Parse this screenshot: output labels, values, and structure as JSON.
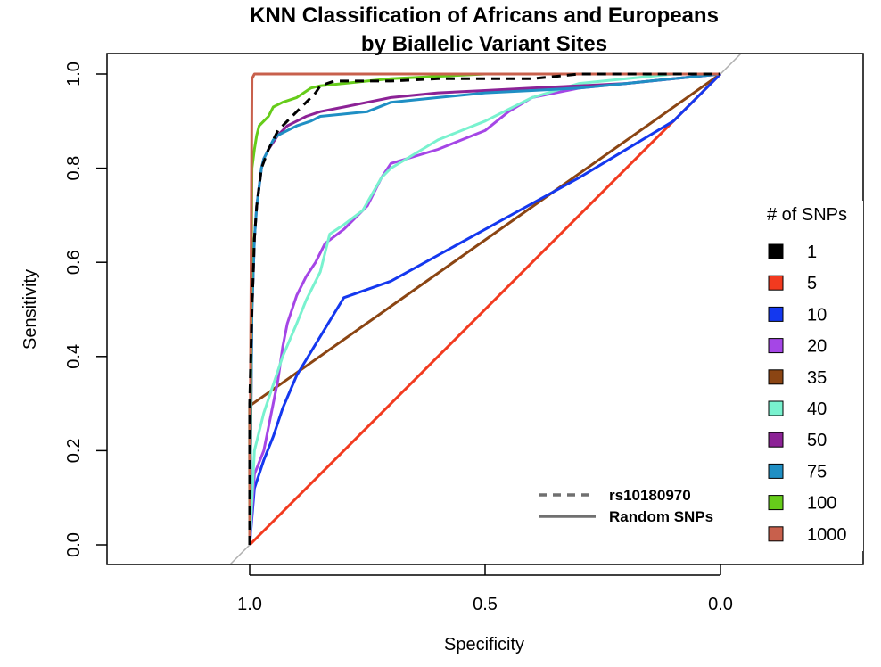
{
  "chart_data": {
    "type": "line",
    "title": [
      "KNN Classification of Africans and Europeans",
      "by Biallelic Variant Sites"
    ],
    "xlabel": "Specificity",
    "ylabel": "Sensitivity",
    "xlim": [
      1.3,
      -0.3
    ],
    "ylim": [
      0,
      1
    ],
    "x_reversed": true,
    "x_ticks": [
      1.0,
      0.5,
      0.0
    ],
    "x_tick_labels": [
      "1.0",
      "0.5",
      "0.0"
    ],
    "y_ticks": [
      0.0,
      0.2,
      0.4,
      0.6,
      0.8,
      1.0
    ],
    "y_tick_labels": [
      "0.0",
      "0.2",
      "0.4",
      "0.6",
      "0.8",
      "1.0"
    ],
    "diagonal_reference": {
      "color": "#b0b0b0"
    },
    "legend": {
      "title": "# of SNPs",
      "position": "right",
      "entries": [
        {
          "label": "1",
          "color": "#000000"
        },
        {
          "label": "5",
          "color": "#f23a1f"
        },
        {
          "label": "10",
          "color": "#1438ef"
        },
        {
          "label": "20",
          "color": "#a546e6"
        },
        {
          "label": "35",
          "color": "#8b4513"
        },
        {
          "label": "40",
          "color": "#79f2cf"
        },
        {
          "label": "50",
          "color": "#8c2296"
        },
        {
          "label": "75",
          "color": "#1f8fc4"
        },
        {
          "label": "100",
          "color": "#66cc1a"
        },
        {
          "label": "1000",
          "color": "#c8604c"
        }
      ]
    },
    "style_legend": [
      {
        "label": "rs10180970",
        "dash": "dashed"
      },
      {
        "label": "Random SNPs",
        "dash": "solid"
      }
    ],
    "series": [
      {
        "name": "5",
        "color": "#f23a1f",
        "dash": "solid",
        "x": [
          1.0,
          0.0
        ],
        "y": [
          0.0,
          1.0
        ]
      },
      {
        "name": "35",
        "color": "#8b4513",
        "dash": "solid",
        "x": [
          1.0,
          1.0,
          0.0
        ],
        "y": [
          0.0,
          0.295,
          1.0
        ]
      },
      {
        "name": "10",
        "color": "#1438ef",
        "dash": "solid",
        "x": [
          1.0,
          0.99,
          0.97,
          0.95,
          0.93,
          0.9,
          0.8,
          0.7,
          0.5,
          0.3,
          0.1,
          0.0
        ],
        "y": [
          0.0,
          0.12,
          0.18,
          0.23,
          0.29,
          0.36,
          0.525,
          0.56,
          0.67,
          0.78,
          0.9,
          1.0
        ]
      },
      {
        "name": "20",
        "color": "#a546e6",
        "dash": "solid",
        "x": [
          1.0,
          0.99,
          0.97,
          0.96,
          0.95,
          0.94,
          0.93,
          0.92,
          0.9,
          0.88,
          0.86,
          0.84,
          0.8,
          0.75,
          0.72,
          0.7,
          0.6,
          0.5,
          0.45,
          0.4,
          0.3,
          0.2,
          0.1,
          0.0
        ],
        "y": [
          0.0,
          0.15,
          0.2,
          0.25,
          0.3,
          0.35,
          0.42,
          0.47,
          0.53,
          0.57,
          0.6,
          0.64,
          0.67,
          0.72,
          0.78,
          0.81,
          0.84,
          0.88,
          0.92,
          0.95,
          0.97,
          0.98,
          0.99,
          1.0
        ]
      },
      {
        "name": "40",
        "color": "#79f2cf",
        "dash": "solid",
        "x": [
          1.0,
          0.99,
          0.97,
          0.95,
          0.93,
          0.9,
          0.88,
          0.85,
          0.83,
          0.8,
          0.76,
          0.72,
          0.7,
          0.6,
          0.5,
          0.4,
          0.3,
          0.2,
          0.1,
          0.0
        ],
        "y": [
          0.0,
          0.2,
          0.28,
          0.34,
          0.4,
          0.47,
          0.52,
          0.58,
          0.66,
          0.68,
          0.71,
          0.78,
          0.8,
          0.86,
          0.9,
          0.95,
          0.98,
          0.99,
          1.0,
          1.0
        ]
      },
      {
        "name": "50",
        "color": "#8c2296",
        "dash": "solid",
        "x": [
          1.0,
          0.995,
          0.99,
          0.985,
          0.98,
          0.975,
          0.97,
          0.96,
          0.94,
          0.92,
          0.9,
          0.88,
          0.85,
          0.8,
          0.75,
          0.7,
          0.6,
          0.5,
          0.4,
          0.3,
          0.2,
          0.1,
          0.0
        ],
        "y": [
          0.0,
          0.5,
          0.65,
          0.72,
          0.76,
          0.8,
          0.82,
          0.84,
          0.87,
          0.89,
          0.9,
          0.91,
          0.92,
          0.93,
          0.94,
          0.95,
          0.96,
          0.965,
          0.97,
          0.975,
          0.98,
          0.99,
          1.0
        ]
      },
      {
        "name": "75",
        "color": "#1f8fc4",
        "dash": "solid",
        "x": [
          1.0,
          0.995,
          0.99,
          0.985,
          0.98,
          0.975,
          0.97,
          0.96,
          0.95,
          0.94,
          0.92,
          0.9,
          0.87,
          0.85,
          0.8,
          0.75,
          0.7,
          0.6,
          0.5,
          0.4,
          0.3,
          0.2,
          0.1,
          0.0
        ],
        "y": [
          0.0,
          0.5,
          0.65,
          0.72,
          0.76,
          0.8,
          0.82,
          0.84,
          0.86,
          0.87,
          0.88,
          0.89,
          0.9,
          0.91,
          0.915,
          0.92,
          0.94,
          0.95,
          0.96,
          0.965,
          0.97,
          0.98,
          0.99,
          1.0
        ]
      },
      {
        "name": "100",
        "color": "#66cc1a",
        "dash": "solid",
        "x": [
          1.0,
          0.995,
          0.99,
          0.985,
          0.98,
          0.97,
          0.96,
          0.95,
          0.93,
          0.9,
          0.87,
          0.85,
          0.8,
          0.75,
          0.7,
          0.6,
          0.5,
          0.4,
          0.3,
          0.2,
          0.1,
          0.0
        ],
        "y": [
          0.0,
          0.8,
          0.84,
          0.87,
          0.89,
          0.9,
          0.91,
          0.93,
          0.94,
          0.95,
          0.97,
          0.975,
          0.98,
          0.985,
          0.99,
          0.995,
          1.0,
          1.0,
          1.0,
          1.0,
          1.0,
          1.0
        ]
      },
      {
        "name": "1000",
        "color": "#c8604c",
        "dash": "solid",
        "x": [
          1.0,
          0.995,
          0.99,
          0.0
        ],
        "y": [
          0.0,
          0.99,
          1.0,
          1.0
        ]
      },
      {
        "name": "1",
        "color": "#000000",
        "dash": "dashed",
        "x": [
          1.0,
          1.0,
          0.995,
          0.99,
          0.985,
          0.975,
          0.96,
          0.95,
          0.94,
          0.92,
          0.9,
          0.88,
          0.86,
          0.85,
          0.82,
          0.78,
          0.7,
          0.6,
          0.5,
          0.4,
          0.3,
          0.2,
          0.1,
          0.0
        ],
        "y": [
          0.0,
          0.3,
          0.5,
          0.65,
          0.72,
          0.8,
          0.84,
          0.86,
          0.88,
          0.9,
          0.92,
          0.94,
          0.96,
          0.975,
          0.985,
          0.985,
          0.985,
          0.99,
          0.99,
          0.99,
          1.0,
          1.0,
          1.0,
          1.0
        ]
      }
    ]
  }
}
